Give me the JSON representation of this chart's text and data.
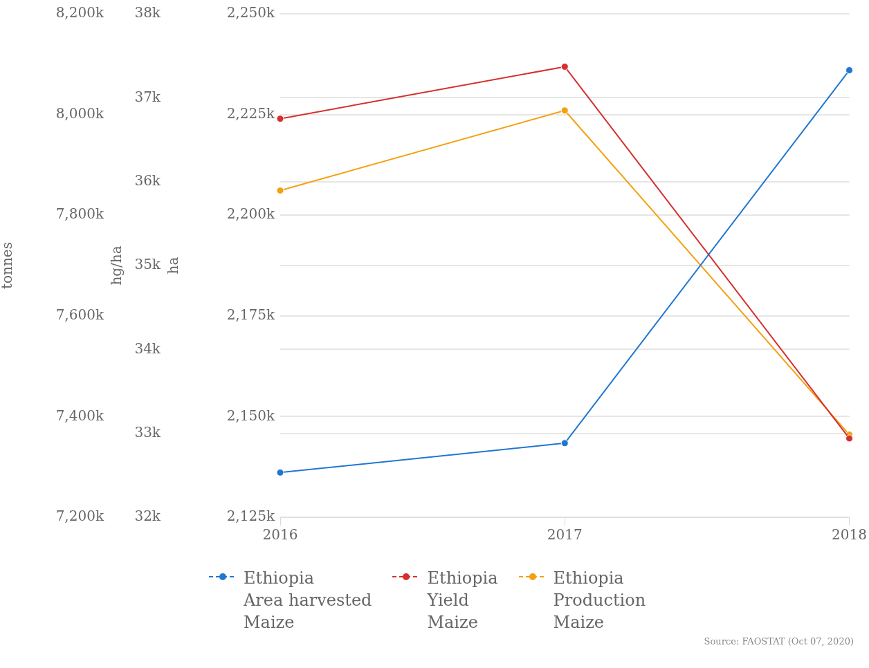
{
  "chart_data": {
    "type": "line",
    "categories": [
      "2016",
      "2017",
      "2018"
    ],
    "ylabel": "tonnes",
    "y2label": "hg/ha",
    "y3label": "ha",
    "ylim": [
      7200000,
      8200000
    ],
    "yticks": [
      {
        "value": 7200000,
        "label": "7,200k"
      },
      {
        "value": 7400000,
        "label": "7,400k"
      },
      {
        "value": 7600000,
        "label": "7,600k"
      },
      {
        "value": 7800000,
        "label": "7,800k"
      },
      {
        "value": 8000000,
        "label": "8,000k"
      },
      {
        "value": 8200000,
        "label": "8,200k"
      }
    ],
    "y2lim": [
      32000,
      38000
    ],
    "y2ticks": [
      {
        "value": 32000,
        "label": "32k"
      },
      {
        "value": 33000,
        "label": "33k"
      },
      {
        "value": 34000,
        "label": "34k"
      },
      {
        "value": 35000,
        "label": "35k"
      },
      {
        "value": 36000,
        "label": "36k"
      },
      {
        "value": 37000,
        "label": "37k"
      },
      {
        "value": 38000,
        "label": "38k"
      }
    ],
    "y3lim": [
      2125000,
      2250000
    ],
    "y3ticks": [
      {
        "value": 2125000,
        "label": "2,125k"
      },
      {
        "value": 2150000,
        "label": "2,150k"
      },
      {
        "value": 2175000,
        "label": "2,175k"
      },
      {
        "value": 2200000,
        "label": "2,200k"
      },
      {
        "value": 2225000,
        "label": "2,225k"
      },
      {
        "value": 2250000,
        "label": "2,250k"
      }
    ],
    "series": [
      {
        "name": "Ethiopia\nArea harvested\nMaize",
        "color": "#1f77d0",
        "axis": "y3",
        "values": [
          2136100,
          2143400,
          2236000
        ]
      },
      {
        "name": "Ethiopia\nYield\nMaize",
        "color": "#d62f2f",
        "axis": "y2",
        "values": [
          36750,
          37370,
          32940
        ]
      },
      {
        "name": "Ethiopia\nProduction\nMaize",
        "color": "#f5a00f",
        "axis": "y",
        "values": [
          7849000,
          8008000,
          7364000
        ]
      }
    ],
    "grid": true,
    "legend": "bottom",
    "marker": "circle",
    "line_style": "solid",
    "annotations": [
      "Source: FAOSTAT (Oct 07, 2020)"
    ]
  }
}
